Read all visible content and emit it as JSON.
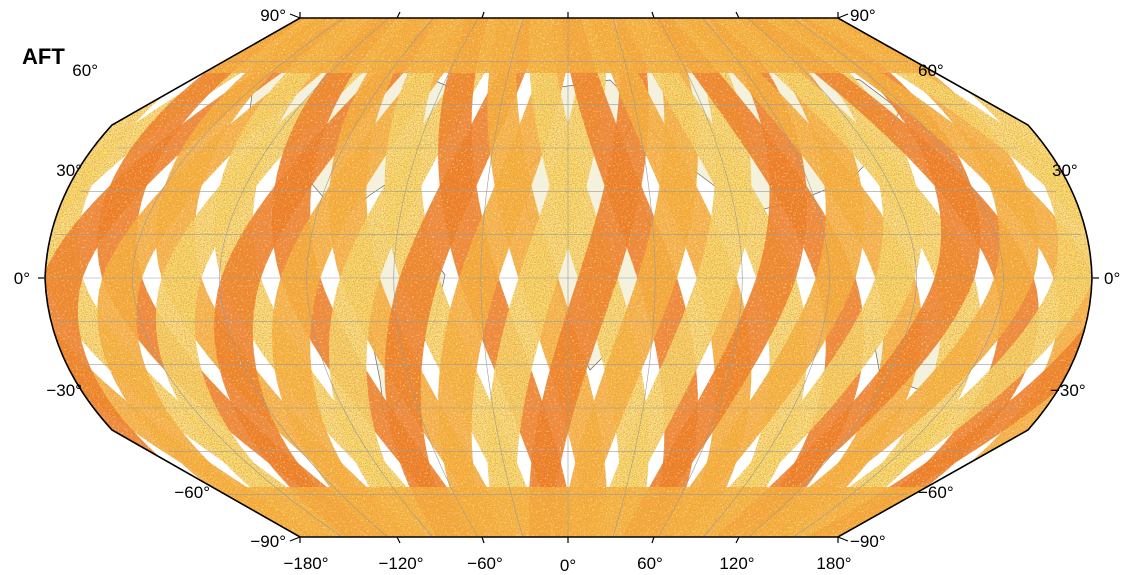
{
  "map": {
    "title": "AFT",
    "projection": "Winkel-type pseudo-cylindrical (global)",
    "colors": {
      "background": "#ffffff",
      "land": "#f4f1dc",
      "swath_light": "#f5e66a",
      "swath_mid": "#f6b733",
      "swath_dark": "#ec7a18",
      "speckle": "#d9401c",
      "pale_green": "#e6f59a",
      "graticule": "#9a9a9a",
      "coastline": "#555555",
      "border": "#000000"
    },
    "latitude_labels": {
      "left": [
        "90°",
        "60°",
        "30°",
        "0°",
        "−30°",
        "−60°",
        "−90°"
      ],
      "right": [
        "90°",
        "60°",
        "30°",
        "0°",
        "−30°",
        "−60°",
        "−90°"
      ]
    },
    "longitude_labels": [
      "−180°",
      "−120°",
      "−60°",
      "0°",
      "60°",
      "120°",
      "180°"
    ],
    "swath_stripes": 20
  }
}
